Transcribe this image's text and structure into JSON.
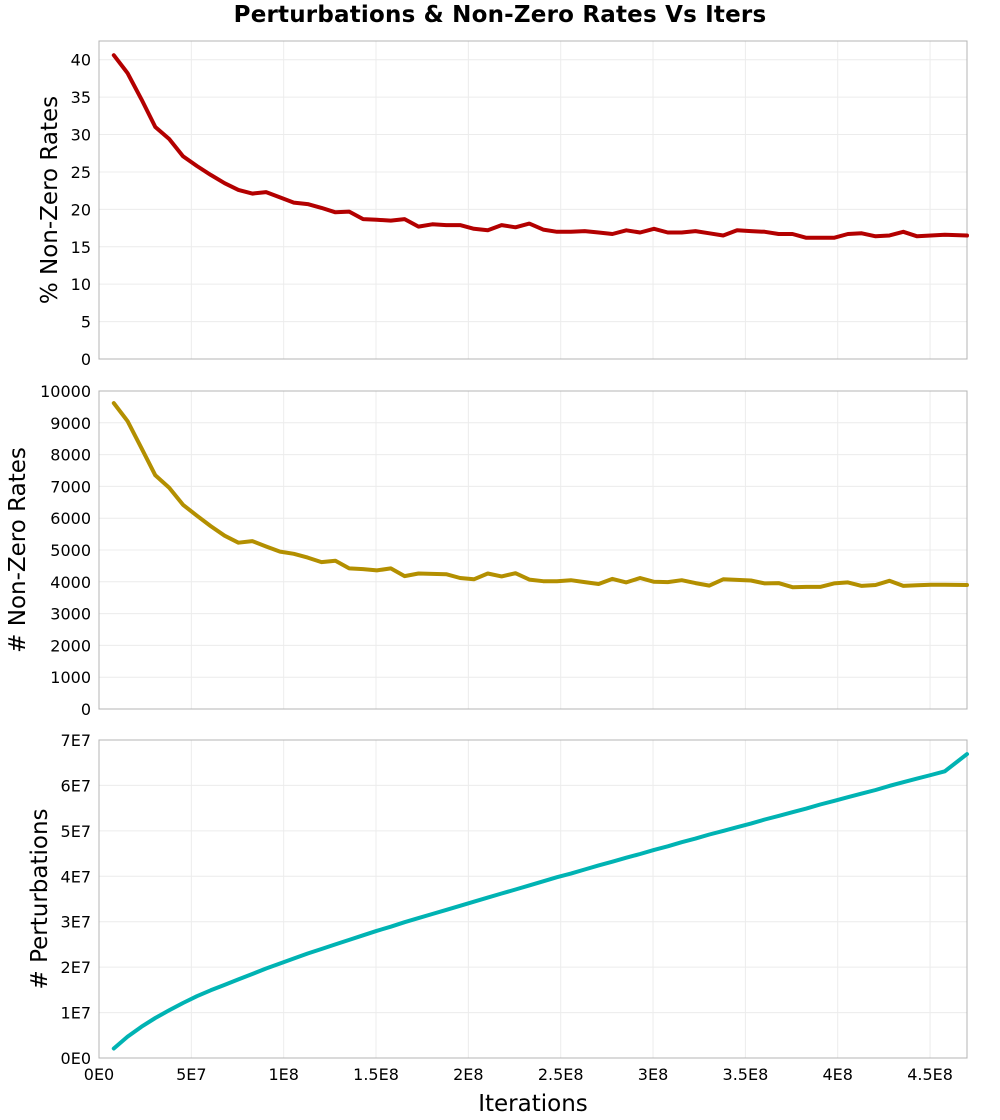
{
  "title": "Perturbations & Non-Zero Rates Vs Iters",
  "chart_data": {
    "type": "line",
    "title": "Perturbations & Non-Zero Rates Vs Iters",
    "xlabel": "Iterations",
    "xlim": [
      0,
      470000000
    ],
    "x_ticks": [
      0,
      50000000,
      100000000,
      150000000,
      200000000,
      250000000,
      300000000,
      350000000,
      400000000,
      450000000
    ],
    "x_tick_labels": [
      "0E0",
      "5E7",
      "1E8",
      "1.5E8",
      "2E8",
      "2.5E8",
      "3E8",
      "3.5E8",
      "4E8",
      "4.5E8"
    ],
    "grid": true,
    "x": [
      8000000,
      15500000,
      23000000,
      30500000,
      38000000,
      45500000,
      53000000,
      60500000,
      68000000,
      75500000,
      83000000,
      90500000,
      98000000,
      105500000,
      113000000,
      120500000,
      128000000,
      135500000,
      143000000,
      150500000,
      158000000,
      165500000,
      173000000,
      180500000,
      188000000,
      195500000,
      203000000,
      210500000,
      218000000,
      225500000,
      233000000,
      240500000,
      248000000,
      255500000,
      263000000,
      270500000,
      278000000,
      285500000,
      293000000,
      300500000,
      308000000,
      315500000,
      323000000,
      330500000,
      338000000,
      345500000,
      353000000,
      360500000,
      368000000,
      375500000,
      383000000,
      390500000,
      398000000,
      405500000,
      413000000,
      420500000,
      428000000,
      435500000,
      443000000,
      450500000,
      458000000,
      470000000
    ],
    "panels": [
      {
        "ylabel": "% Non-Zero Rates",
        "ylim": [
          0,
          42.5
        ],
        "y_ticks": [
          0,
          5,
          10,
          15,
          20,
          25,
          30,
          35,
          40
        ],
        "y_tick_labels": [
          "0",
          "5",
          "10",
          "15",
          "20",
          "25",
          "30",
          "35",
          "40"
        ],
        "color": "#b30000",
        "values": [
          40.6,
          38.2,
          34.7,
          31.0,
          29.4,
          27.1,
          25.8,
          24.6,
          23.5,
          22.6,
          22.1,
          22.3,
          21.6,
          20.9,
          20.7,
          20.2,
          19.6,
          19.7,
          18.7,
          18.6,
          18.5,
          18.7,
          17.7,
          18.0,
          17.9,
          17.9,
          17.4,
          17.2,
          17.9,
          17.6,
          18.1,
          17.3,
          17.0,
          17.0,
          17.1,
          16.9,
          16.7,
          17.2,
          16.9,
          17.4,
          16.9,
          16.9,
          17.1,
          16.8,
          16.5,
          17.2,
          17.1,
          17.0,
          16.7,
          16.7,
          16.2,
          16.2,
          16.2,
          16.7,
          16.8,
          16.4,
          16.5,
          17.0,
          16.4,
          16.5,
          16.6,
          16.5
        ]
      },
      {
        "ylabel": "# Non-Zero Rates",
        "ylim": [
          0,
          10000
        ],
        "y_ticks": [
          0,
          1000,
          2000,
          3000,
          4000,
          5000,
          6000,
          7000,
          8000,
          9000,
          10000
        ],
        "y_tick_labels": [
          "0",
          "1000",
          "2000",
          "3000",
          "4000",
          "5000",
          "6000",
          "7000",
          "8000",
          "9000",
          "10000"
        ],
        "color": "#b38f00",
        "values": [
          9620,
          9050,
          8200,
          7350,
          6960,
          6420,
          6080,
          5750,
          5450,
          5230,
          5280,
          5110,
          4950,
          4880,
          4760,
          4620,
          4660,
          4420,
          4400,
          4360,
          4420,
          4180,
          4260,
          4250,
          4240,
          4120,
          4080,
          4260,
          4170,
          4270,
          4070,
          4020,
          4020,
          4050,
          3990,
          3930,
          4090,
          3980,
          4120,
          4000,
          3990,
          4050,
          3960,
          3880,
          4080,
          4060,
          4040,
          3950,
          3960,
          3830,
          3840,
          3840,
          3950,
          3980,
          3870,
          3900,
          4030,
          3870,
          3890,
          3910,
          3910,
          3900
        ]
      },
      {
        "ylabel": "# Perturbations",
        "ylim": [
          0,
          70000000
        ],
        "y_ticks": [
          0,
          10000000,
          20000000,
          30000000,
          40000000,
          50000000,
          60000000,
          70000000
        ],
        "y_tick_labels": [
          "0E0",
          "1E7",
          "2E7",
          "3E7",
          "4E7",
          "5E7",
          "6E7",
          "7E7"
        ],
        "color": "#00b3b3",
        "values": [
          2100000,
          4700000,
          6900000,
          8800000,
          10500000,
          12100000,
          13600000,
          14900000,
          16100000,
          17300000,
          18500000,
          19700000,
          20800000,
          21900000,
          23000000,
          24000000,
          25000000,
          26000000,
          27000000,
          28000000,
          28900000,
          29900000,
          30800000,
          31700000,
          32600000,
          33500000,
          34400000,
          35300000,
          36200000,
          37100000,
          38000000,
          38900000,
          39800000,
          40600000,
          41500000,
          42400000,
          43200000,
          44100000,
          44900000,
          45800000,
          46600000,
          47500000,
          48300000,
          49200000,
          50000000,
          50800000,
          51600000,
          52500000,
          53300000,
          54100000,
          54900000,
          55800000,
          56600000,
          57400000,
          58200000,
          59000000,
          59900000,
          60700000,
          61500000,
          62300000,
          63100000,
          66900000
        ]
      }
    ]
  }
}
